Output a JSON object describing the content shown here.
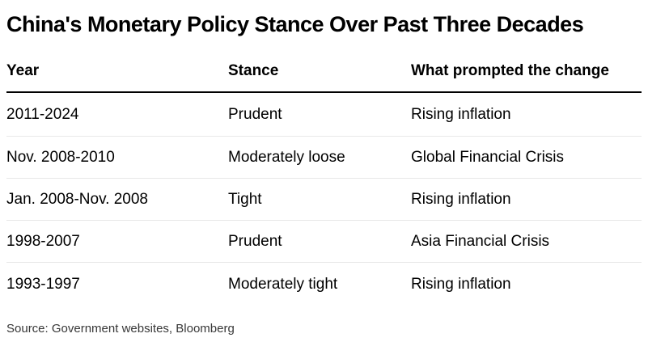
{
  "chart_data": {
    "type": "table",
    "title": "China's Monetary Policy Stance Over Past Three Decades",
    "columns": [
      "Year",
      "Stance",
      "What prompted the change"
    ],
    "rows": [
      [
        "2011-2024",
        "Prudent",
        "Rising inflation"
      ],
      [
        "Nov. 2008-2010",
        "Moderately loose",
        "Global Financial Crisis"
      ],
      [
        "Jan. 2008-Nov. 2008",
        "Tight",
        "Rising inflation"
      ],
      [
        "1998-2007",
        "Prudent",
        "Asia Financial Crisis"
      ],
      [
        "1993-1997",
        "Moderately tight",
        "Rising inflation"
      ]
    ],
    "source": "Source: Government websites, Bloomberg",
    "layout_hints": {
      "header_rule": "thick solid black under header row",
      "row_separators": "thin light gray between rows only",
      "alignment": "all columns left-aligned"
    }
  },
  "colors": {
    "background": "#ffffff",
    "text": "#000000",
    "header_rule": "#000000",
    "row_separator": "#e8e8e8",
    "source_text": "#373737"
  }
}
